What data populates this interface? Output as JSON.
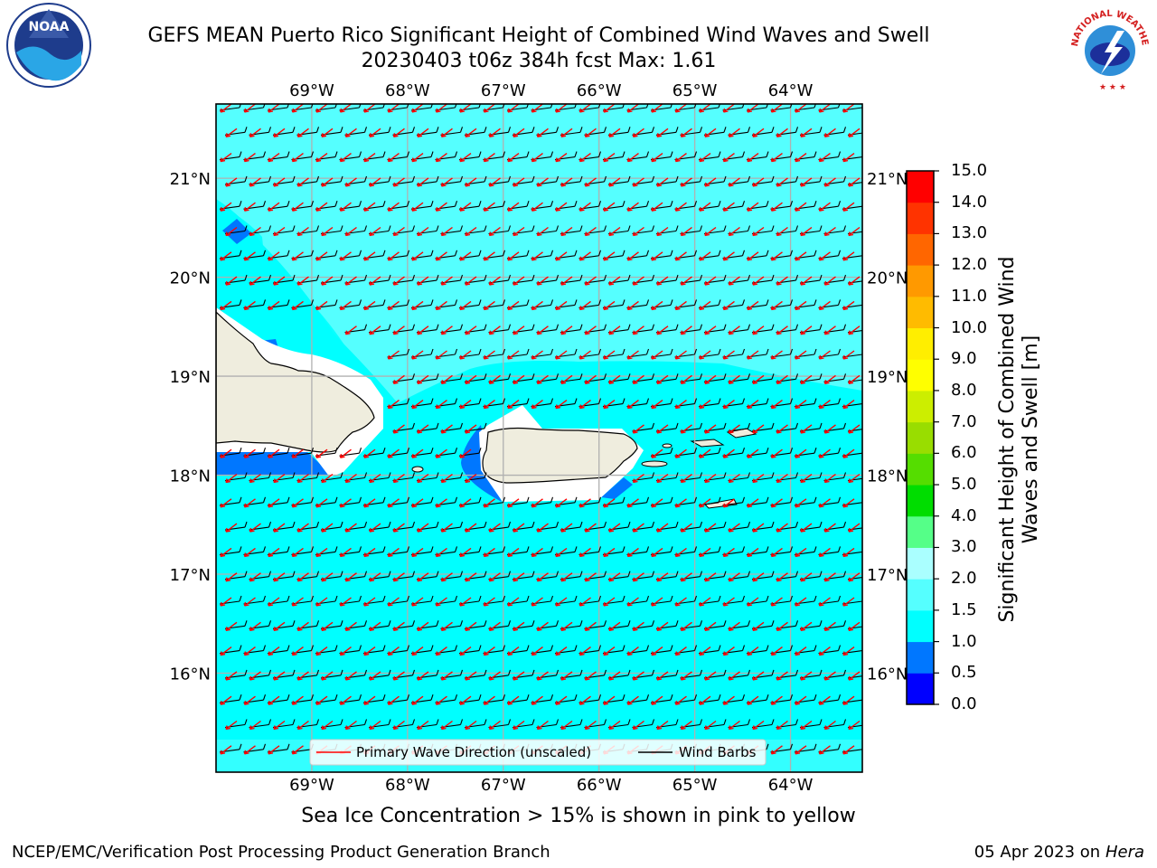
{
  "header": {
    "title_line1": "GEFS MEAN Puerto Rico Significant Height of Combined Wind Waves and Swell",
    "title_line2": "20230403 t06z 384h fcst   Max: 1.61"
  },
  "logos": {
    "left": {
      "name": "noaa-logo",
      "text": "NOAA"
    },
    "right": {
      "name": "nws-logo",
      "text": "NATIONAL WEATHER SERVICE"
    }
  },
  "map": {
    "lon_labels": [
      "69°W",
      "68°W",
      "67°W",
      "66°W",
      "65°W",
      "64°W"
    ],
    "lat_labels": [
      "21°N",
      "20°N",
      "19°N",
      "18°N",
      "17°N",
      "16°N"
    ],
    "lon_values": [
      -69,
      -68,
      -67,
      -66,
      -65,
      -64
    ],
    "lat_values": [
      21,
      20,
      19,
      18,
      17,
      16
    ],
    "extent": {
      "lon": [
        -70,
        -63.25
      ],
      "lat": [
        15,
        21.75
      ]
    },
    "ocean_color": "#00ffff",
    "land_color": "#efedde"
  },
  "legend": {
    "wave_label": "Primary Wave Direction (unscaled)",
    "wind_label": "Wind Barbs"
  },
  "colorbar": {
    "label": "Significant Height of Combined Wind Waves and Swell [m]",
    "levels": [
      "0.0",
      "0.5",
      "1.0",
      "1.5",
      "2.0",
      "3.0",
      "4.0",
      "5.0",
      "6.0",
      "7.0",
      "8.0",
      "9.0",
      "10.0",
      "11.0",
      "12.0",
      "13.0",
      "14.0",
      "15.0"
    ],
    "colors": [
      "#0000ff",
      "#0077ff",
      "#00ffff",
      "#55ffff",
      "#aaffff",
      "#55ff88",
      "#00dd00",
      "#55dd00",
      "#99dd00",
      "#ccee00",
      "#ffff00",
      "#ffee00",
      "#ffbb00",
      "#ff9900",
      "#ff6600",
      "#ff3300",
      "#ff0000"
    ]
  },
  "notes": {
    "sea_ice": "Sea Ice Concentration > 15% is shown in pink to yellow"
  },
  "footer": {
    "left": "NCEP/EMC/Verification Post Processing Product Generation Branch",
    "date": "05 Apr 2023 on ",
    "host": "Hera"
  }
}
